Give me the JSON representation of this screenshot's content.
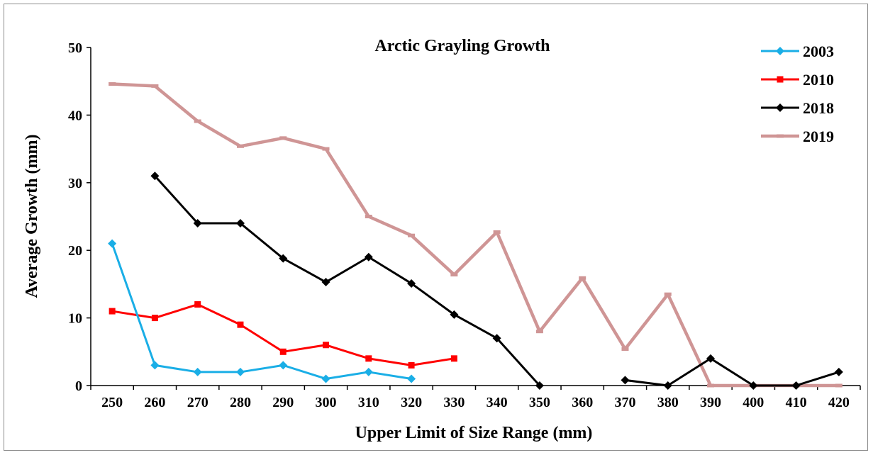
{
  "chart_data": {
    "type": "line",
    "title": "Arctic Grayling Growth",
    "xlabel": "Upper Limit of Size Range (mm)",
    "ylabel": "Average Growth (mm)",
    "categories": [
      "250",
      "260",
      "270",
      "280",
      "290",
      "300",
      "310",
      "320",
      "330",
      "340",
      "350",
      "360",
      "370",
      "380",
      "390",
      "400",
      "410",
      "420"
    ],
    "ylim": [
      0,
      50
    ],
    "yticks": [
      "0",
      "10",
      "20",
      "30",
      "40",
      "50"
    ],
    "grid": false,
    "legend_position": "top-right",
    "series": [
      {
        "name": "2003",
        "color": "#1aaee6",
        "marker": "diamond",
        "values": [
          21,
          3,
          2,
          2,
          3,
          1,
          2,
          1,
          null,
          null,
          null,
          null,
          null,
          null,
          null,
          null,
          null,
          null
        ]
      },
      {
        "name": "2010",
        "color": "#ff0000",
        "marker": "square",
        "values": [
          11,
          10,
          12,
          9,
          5,
          6,
          4,
          3,
          4,
          null,
          null,
          null,
          null,
          null,
          null,
          null,
          null,
          null
        ]
      },
      {
        "name": "2018",
        "color": "#000000",
        "marker": "diamond",
        "values": [
          null,
          31,
          24,
          24,
          18.8,
          15.3,
          19,
          15.1,
          10.5,
          7,
          0,
          null,
          0.8,
          0,
          4,
          0,
          0,
          2
        ]
      },
      {
        "name": "2019",
        "color": "#cf9595",
        "marker": "dash",
        "values": [
          44.6,
          44.3,
          39.1,
          35.4,
          36.6,
          35,
          25,
          22.2,
          16.4,
          22.7,
          8,
          15.9,
          5.4,
          13.5,
          0,
          0,
          0,
          0
        ]
      }
    ]
  }
}
